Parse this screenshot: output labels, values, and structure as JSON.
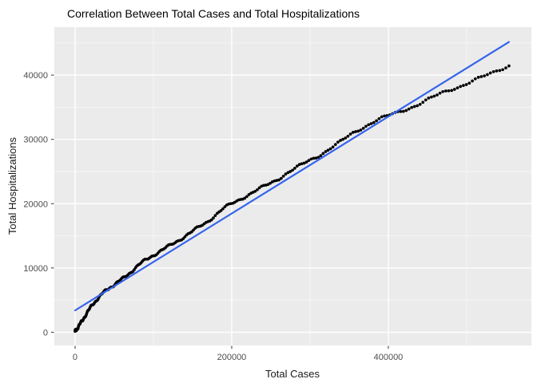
{
  "chart_data": {
    "type": "scatter",
    "title": "Correlation Between Total Cases and Total Hospitalizations",
    "xlabel": "Total Cases",
    "ylabel": "Total Hospitalizations",
    "x_ticks": [
      0,
      200000,
      400000
    ],
    "x_minor_ticks": [
      100000,
      300000,
      500000
    ],
    "y_ticks": [
      0,
      10000,
      20000,
      30000,
      40000
    ],
    "y_minor_ticks": [
      5000,
      15000,
      25000,
      35000,
      45000
    ],
    "xlim": [
      -26500,
      582700
    ],
    "ylim": [
      -2060,
      47460
    ],
    "grid": true,
    "legend_position": "none",
    "x_max_data": 554000,
    "points_sampled": [
      [
        0,
        150
      ],
      [
        4000,
        800
      ],
      [
        8000,
        1600
      ],
      [
        12000,
        2400
      ],
      [
        16000,
        3150
      ],
      [
        20000,
        3900
      ],
      [
        25000,
        4700
      ],
      [
        30000,
        5400
      ],
      [
        35000,
        6000
      ],
      [
        40000,
        6550
      ],
      [
        45000,
        7000
      ],
      [
        50000,
        7400
      ],
      [
        60000,
        8250
      ],
      [
        70000,
        9250
      ],
      [
        80000,
        10350
      ],
      [
        90000,
        11250
      ],
      [
        100000,
        12000
      ],
      [
        110000,
        12700
      ],
      [
        120000,
        13400
      ],
      [
        130000,
        14150
      ],
      [
        140000,
        14900
      ],
      [
        150000,
        15700
      ],
      [
        160000,
        16500
      ],
      [
        170000,
        17300
      ],
      [
        180000,
        18300
      ],
      [
        190000,
        19300
      ],
      [
        200000,
        20000
      ],
      [
        210000,
        20650
      ],
      [
        220000,
        21300
      ],
      [
        230000,
        21950
      ],
      [
        240000,
        22600
      ],
      [
        251000,
        23300
      ],
      [
        260000,
        23900
      ],
      [
        270000,
        24700
      ],
      [
        280000,
        25400
      ],
      [
        290000,
        26100
      ],
      [
        300000,
        26800
      ],
      [
        310000,
        27400
      ],
      [
        320000,
        28100
      ],
      [
        330000,
        28900
      ],
      [
        340000,
        29700
      ],
      [
        353000,
        30900
      ],
      [
        365000,
        31700
      ],
      [
        375000,
        32300
      ],
      [
        390000,
        33200
      ],
      [
        404000,
        33900
      ],
      [
        420000,
        34600
      ],
      [
        435000,
        35200
      ],
      [
        450000,
        36100
      ],
      [
        468000,
        37250
      ],
      [
        480000,
        37800
      ],
      [
        493000,
        38300
      ],
      [
        505000,
        38900
      ],
      [
        520000,
        39700
      ],
      [
        532000,
        40300
      ],
      [
        543000,
        40900
      ],
      [
        554000,
        41500
      ]
    ],
    "trend_line": {
      "type": "linear",
      "x1": 0,
      "y1": 3400,
      "x2": 554000,
      "y2": 45150
    },
    "colors": {
      "panel_background": "#EBEBEB",
      "grid_major": "#FFFFFF",
      "grid_minor": "#F7F7F7",
      "point": "#000000",
      "trend_line": "#3564EC",
      "tick_label": "#4D4D4D",
      "axis_title": "#1A1A1A",
      "title": "#000000",
      "tick_mark": "#333333"
    }
  }
}
